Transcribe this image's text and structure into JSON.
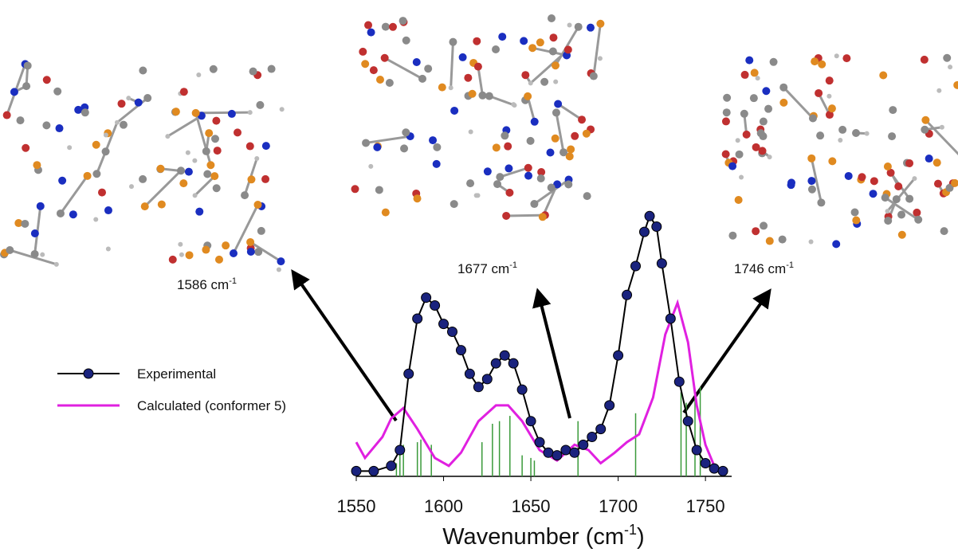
{
  "chart_data": {
    "type": "line",
    "x_label": [
      "Wavenumber (cm",
      "-1",
      ")"
    ],
    "xlim": [
      1550,
      1765
    ],
    "xticks": [
      1550,
      1600,
      1650,
      1700,
      1750
    ],
    "ylim": [
      0,
      1
    ],
    "series": [
      {
        "name": "Experimental",
        "color": "#1a237e",
        "x": [
          1550,
          1560,
          1570,
          1575,
          1580,
          1585,
          1590,
          1595,
          1600,
          1605,
          1610,
          1615,
          1620,
          1625,
          1630,
          1635,
          1640,
          1645,
          1650,
          1655,
          1660,
          1665,
          1670,
          1675,
          1680,
          1685,
          1690,
          1695,
          1700,
          1705,
          1710,
          1715,
          1718,
          1722,
          1725,
          1730,
          1735,
          1740,
          1745,
          1750,
          1755,
          1760
        ],
        "values": [
          0.02,
          0.02,
          0.04,
          0.1,
          0.39,
          0.6,
          0.68,
          0.65,
          0.58,
          0.55,
          0.48,
          0.39,
          0.34,
          0.37,
          0.43,
          0.46,
          0.43,
          0.33,
          0.21,
          0.13,
          0.09,
          0.08,
          0.1,
          0.09,
          0.12,
          0.15,
          0.18,
          0.27,
          0.46,
          0.69,
          0.8,
          0.93,
          0.99,
          0.95,
          0.81,
          0.6,
          0.36,
          0.21,
          0.1,
          0.05,
          0.03,
          0.02
        ]
      },
      {
        "name": "Calculated (conformer 5)",
        "color": "#e020e0",
        "x": [
          1550,
          1555,
          1565,
          1570,
          1577,
          1585,
          1595,
          1603,
          1610,
          1620,
          1630,
          1637,
          1645,
          1655,
          1665,
          1675,
          1683,
          1690,
          1698,
          1705,
          1712,
          1720,
          1727,
          1734,
          1740,
          1745,
          1750,
          1755,
          1760
        ],
        "values": [
          0.13,
          0.07,
          0.15,
          0.22,
          0.26,
          0.18,
          0.07,
          0.04,
          0.09,
          0.21,
          0.27,
          0.27,
          0.21,
          0.1,
          0.06,
          0.12,
          0.1,
          0.05,
          0.09,
          0.13,
          0.16,
          0.3,
          0.54,
          0.66,
          0.51,
          0.27,
          0.12,
          0.04,
          0.01
        ]
      }
    ],
    "sticks": {
      "color": "#3a9a3a",
      "x": [
        1573,
        1575,
        1577,
        1585,
        1587,
        1593,
        1622,
        1628,
        1632,
        1638,
        1645,
        1650,
        1652,
        1677,
        1710,
        1736,
        1739,
        1744,
        1747
      ],
      "values": [
        0.05,
        0.1,
        0.12,
        0.13,
        0.14,
        0.12,
        0.13,
        0.2,
        0.21,
        0.23,
        0.08,
        0.07,
        0.06,
        0.21,
        0.24,
        0.32,
        0.28,
        0.31,
        0.34
      ]
    },
    "annotations": [
      {
        "text": "1586 cm",
        "sup": "-1"
      },
      {
        "text": "1677 cm",
        "sup": "-1"
      },
      {
        "text": "1746 cm",
        "sup": "-1"
      }
    ]
  }
}
